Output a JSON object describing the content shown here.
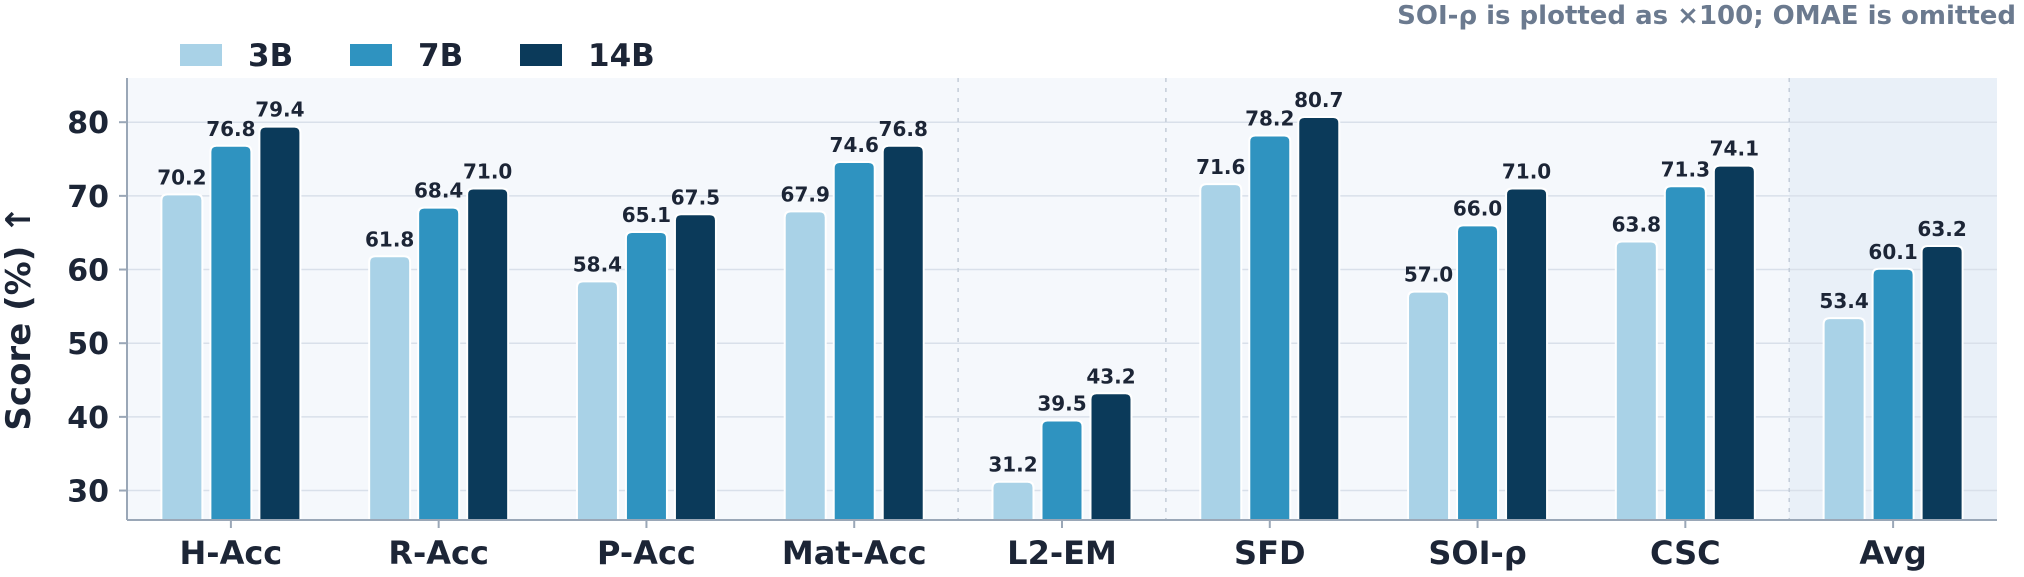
{
  "chart_data": {
    "type": "bar",
    "note": "SOI-ρ is plotted as ×100; OMAE is omitted",
    "ylabel": "Score (%) ↑",
    "xlabel": "",
    "ylim": [
      26,
      86
    ],
    "yticks": [
      30,
      40,
      50,
      60,
      70,
      80
    ],
    "grid": "horizontal",
    "legend_position": "top-left",
    "categories": [
      "H-Acc",
      "R-Acc",
      "P-Acc",
      "Mat-Acc",
      "L2-EM",
      "SFD",
      "SOI-ρ",
      "CSC",
      "Avg"
    ],
    "group_separators_after": [
      "Mat-Acc",
      "L2-EM",
      "CSC"
    ],
    "highlighted_category": "Avg",
    "series": [
      {
        "name": "3B",
        "color": "#a9d2e7",
        "values": [
          70.2,
          61.8,
          58.4,
          67.9,
          31.2,
          71.6,
          57.0,
          63.8,
          53.4
        ]
      },
      {
        "name": "7B",
        "color": "#2f93c0",
        "values": [
          76.8,
          68.4,
          65.1,
          74.6,
          39.5,
          78.2,
          66.0,
          71.3,
          60.1
        ]
      },
      {
        "name": "14B",
        "color": "#0b3a5a",
        "values": [
          79.4,
          71.0,
          67.5,
          76.8,
          43.2,
          80.7,
          71.0,
          74.1,
          63.2
        ]
      }
    ],
    "colors": {
      "plot_bg": "#f5f8fc",
      "highlight_bg": "#e9f0f8",
      "grid": "#d9e0ea",
      "axis": "#9aa7b7"
    }
  }
}
